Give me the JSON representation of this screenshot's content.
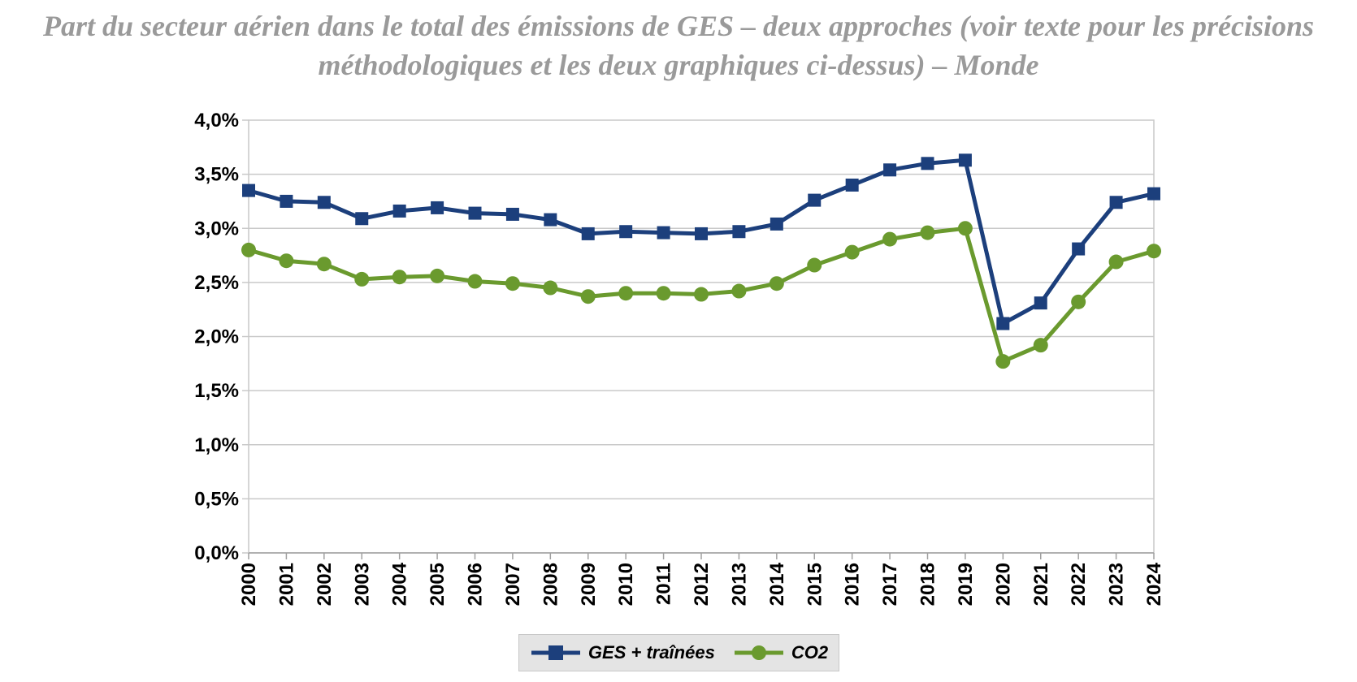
{
  "title_lines": [
    "Part du secteur aérien dans le total des émissions de GES – deux approches (voir texte pour les précisions",
    "méthodologiques et les deux graphiques ci-dessus) – Monde"
  ],
  "colors": {
    "series_ges": "#1c3f7c",
    "series_co2": "#6a9a2e",
    "grid": "#c9c9c9",
    "title": "#9a9a9a"
  },
  "chart_data": {
    "type": "line",
    "title": "Part du secteur aérien dans le total des émissions de GES – deux approches (voir texte pour les précisions méthodologiques et les deux graphiques ci-dessus) – Monde",
    "xlabel": "",
    "ylabel": "",
    "x": [
      "2000",
      "2001",
      "2002",
      "2003",
      "2004",
      "2005",
      "2006",
      "2007",
      "2008",
      "2009",
      "2010",
      "2011",
      "2012",
      "2013",
      "2014",
      "2015",
      "2016",
      "2017",
      "2018",
      "2019",
      "2020",
      "2021",
      "2022",
      "2023",
      "2024"
    ],
    "ylim": [
      0,
      4.0
    ],
    "yticks": [
      0,
      0.5,
      1.0,
      1.5,
      2.0,
      2.5,
      3.0,
      3.5,
      4.0
    ],
    "ytick_labels": [
      "0,0%",
      "0,5%",
      "1,0%",
      "1,5%",
      "2,0%",
      "2,5%",
      "3,0%",
      "3,5%",
      "4,0%"
    ],
    "y_unit": "%",
    "grid": true,
    "legend_position": "bottom",
    "series": [
      {
        "name": "GES + traînées",
        "marker": "square",
        "color": "#1c3f7c",
        "values": [
          3.35,
          3.25,
          3.24,
          3.09,
          3.16,
          3.19,
          3.14,
          3.13,
          3.08,
          2.95,
          2.97,
          2.96,
          2.95,
          2.97,
          3.04,
          3.26,
          3.4,
          3.54,
          3.6,
          3.63,
          2.12,
          2.31,
          2.81,
          3.24,
          3.32
        ]
      },
      {
        "name": "CO2",
        "marker": "circle",
        "color": "#6a9a2e",
        "values": [
          2.8,
          2.7,
          2.67,
          2.53,
          2.55,
          2.56,
          2.51,
          2.49,
          2.45,
          2.37,
          2.4,
          2.4,
          2.39,
          2.42,
          2.49,
          2.66,
          2.78,
          2.9,
          2.96,
          3.0,
          1.77,
          1.92,
          2.32,
          2.69,
          2.79
        ]
      }
    ]
  }
}
